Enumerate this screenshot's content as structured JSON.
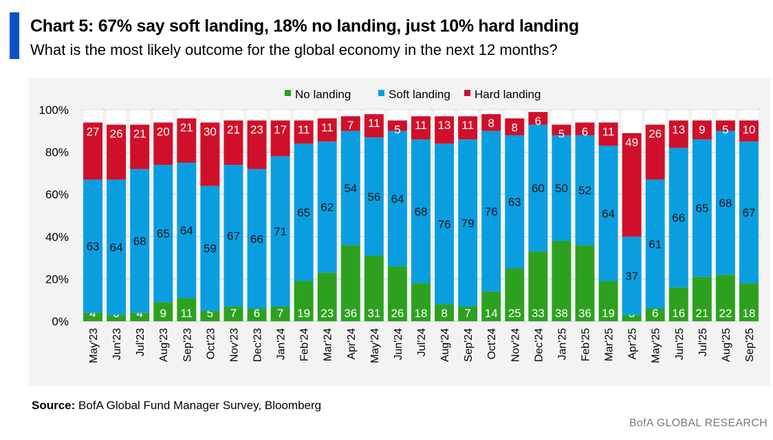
{
  "header": {
    "title": "Chart 5: 67% say soft landing, 18% no landing, just 10% hard landing",
    "subtitle": "What is the most likely outcome for the global economy in the next 12 months?"
  },
  "footer": {
    "source_label": "Source:",
    "source_text": " BofA Global Fund Manager Survey, Bloomberg",
    "brand": "BofA GLOBAL RESEARCH"
  },
  "colors": {
    "no_landing": "#2da11f",
    "soft_landing": "#0a9ee0",
    "hard_landing": "#d0102a",
    "gridline": "#cccccc",
    "panel": "#f3f3f3"
  },
  "chart_data": {
    "type": "bar",
    "stacked": true,
    "title": "Chart 5: 67% say soft landing, 18% no landing, just 10% hard landing",
    "subtitle": "What is the most likely outcome for the global economy in the next 12 months?",
    "xlabel": "",
    "ylabel": "",
    "ylim": [
      0,
      100
    ],
    "yticks": [
      "0%",
      "20%",
      "40%",
      "60%",
      "80%",
      "100%"
    ],
    "legend": "top",
    "grid": true,
    "categories": [
      "May'23",
      "Jun'23",
      "Jul'23",
      "Aug'23",
      "Sep'23",
      "Oct'23",
      "Nov'23",
      "Dec'23",
      "Jan'24",
      "Feb'24",
      "Mar'24",
      "Apr'24",
      "May'24",
      "Jun'24",
      "Jul'24",
      "Aug'24",
      "Sep'24",
      "Oct'24",
      "Nov'24",
      "Dec'24",
      "Jan'25",
      "Feb'25",
      "Mar'25",
      "Apr'25",
      "May'25",
      "Jun'25",
      "Jul'25",
      "Aug'25",
      "Sep'25"
    ],
    "series": [
      {
        "name": "No landing",
        "values": [
          4,
          3,
          4,
          9,
          11,
          5,
          7,
          6,
          7,
          19,
          23,
          36,
          31,
          26,
          18,
          8,
          7,
          14,
          25,
          33,
          38,
          36,
          19,
          3,
          6,
          16,
          21,
          22,
          18
        ]
      },
      {
        "name": "Soft landing",
        "values": [
          63,
          64,
          68,
          65,
          64,
          59,
          67,
          66,
          71,
          65,
          62,
          54,
          56,
          64,
          68,
          76,
          79,
          76,
          63,
          60,
          50,
          52,
          64,
          37,
          61,
          66,
          65,
          68,
          67
        ]
      },
      {
        "name": "Hard landing",
        "values": [
          27,
          26,
          21,
          20,
          21,
          30,
          21,
          23,
          17,
          11,
          11,
          7,
          11,
          5,
          11,
          13,
          11,
          8,
          8,
          6,
          5,
          6,
          11,
          49,
          26,
          13,
          9,
          5,
          10
        ]
      }
    ]
  }
}
